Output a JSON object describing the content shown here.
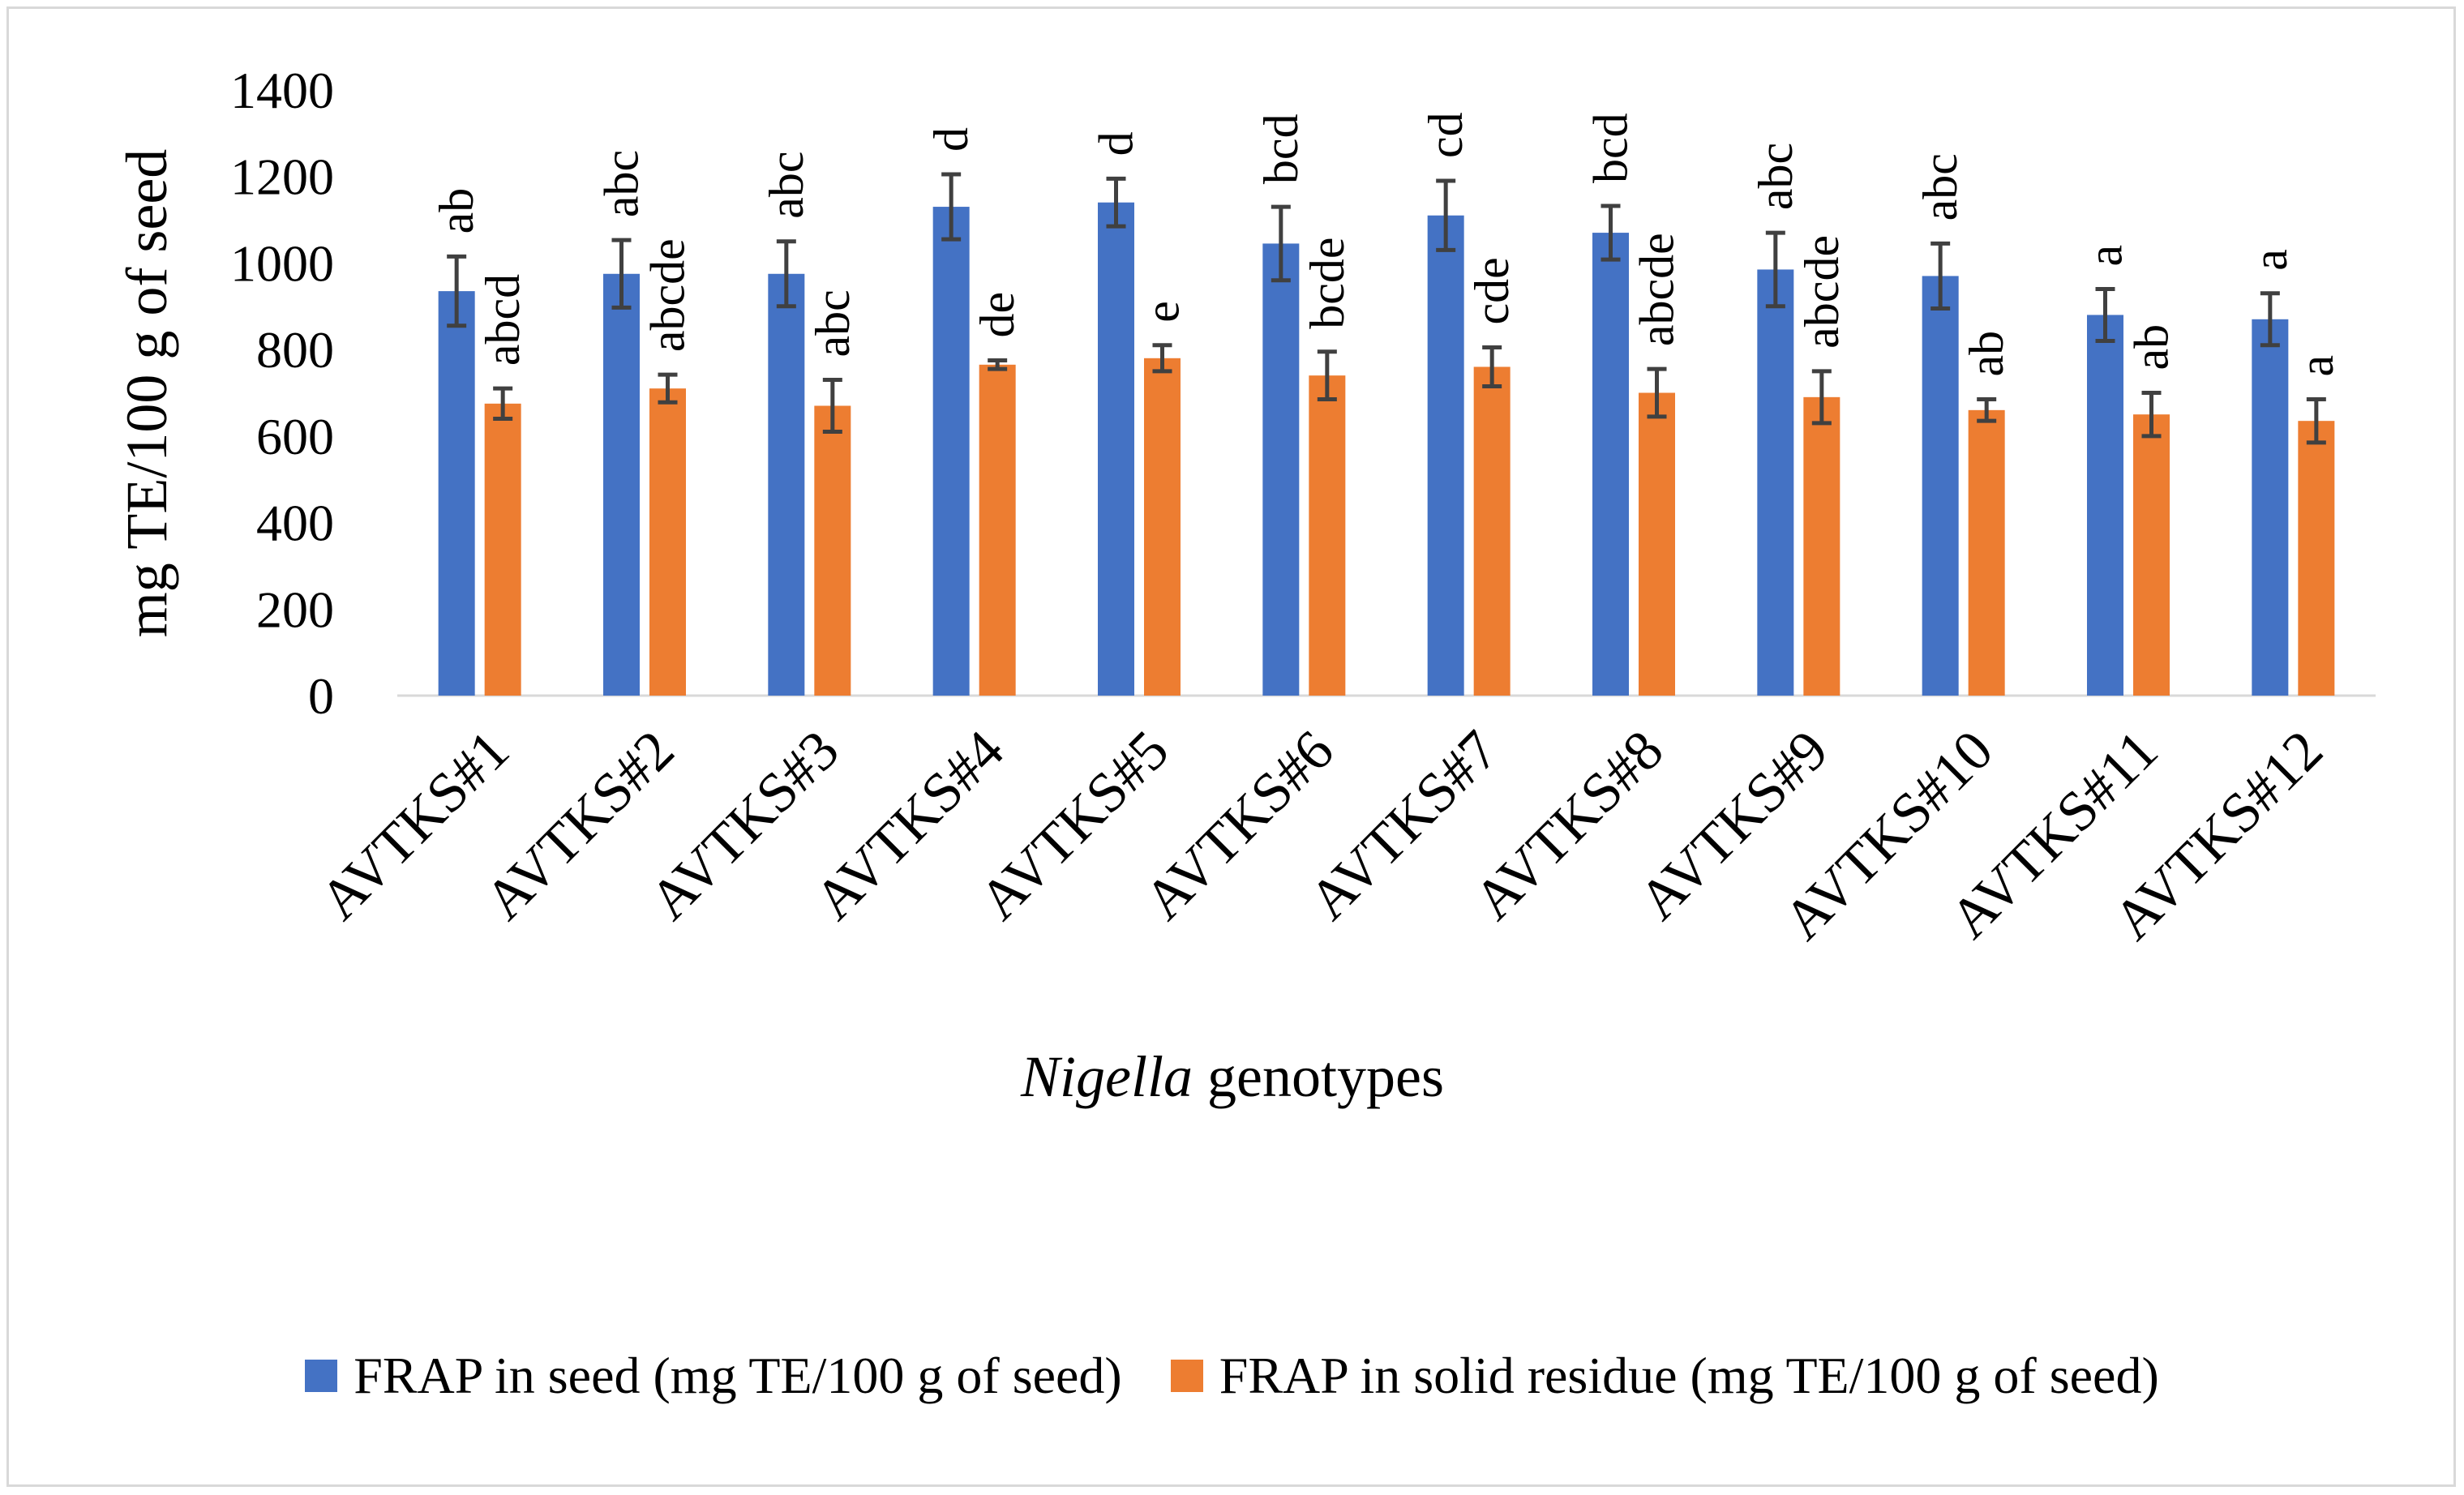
{
  "chart_data": {
    "type": "bar",
    "title": "",
    "xlabel_italic": "Nigella",
    "xlabel_rest": " genotypes",
    "ylabel": "mg TE/100 g of seed",
    "ylim": [
      0,
      1400
    ],
    "yticks": [
      0,
      200,
      400,
      600,
      800,
      1000,
      1200,
      1400
    ],
    "grid": false,
    "legend_position": "bottom",
    "categories": [
      "AVTKS#1",
      "AVTKS#2",
      "AVTKS#3",
      "AVTKS#4",
      "AVTKS#5",
      "AVTKS#6",
      "AVTKS#7",
      "AVTKS#8",
      "AVTKS#9",
      "AVTKS#10",
      "AVTKS#11",
      "AVTKS#12"
    ],
    "series": [
      {
        "name": "FRAP in seed (mg TE/100 g of seed)",
        "color": "#4472c4",
        "values": [
          935,
          975,
          975,
          1130,
          1140,
          1045,
          1110,
          1070,
          985,
          970,
          880,
          870
        ],
        "errors": [
          80,
          78,
          75,
          75,
          55,
          85,
          80,
          62,
          85,
          75,
          60,
          60
        ],
        "labels": [
          "ab",
          "abc",
          "abc",
          "d",
          "d",
          "bcd",
          "cd",
          "bcd",
          "abc",
          "abc",
          "a",
          "a"
        ]
      },
      {
        "name": "FRAP in solid residue (mg TE/100 g of seed)",
        "color": "#ed7d31",
        "values": [
          675,
          710,
          670,
          765,
          780,
          740,
          760,
          700,
          690,
          660,
          650,
          635
        ],
        "errors": [
          35,
          32,
          60,
          10,
          30,
          55,
          45,
          55,
          60,
          25,
          50,
          50
        ],
        "labels": [
          "abcd",
          "abcde",
          "abc",
          "de",
          "e",
          "bcde",
          "cde",
          "abcde",
          "abcde",
          "ab",
          "ab",
          "a"
        ]
      }
    ]
  }
}
